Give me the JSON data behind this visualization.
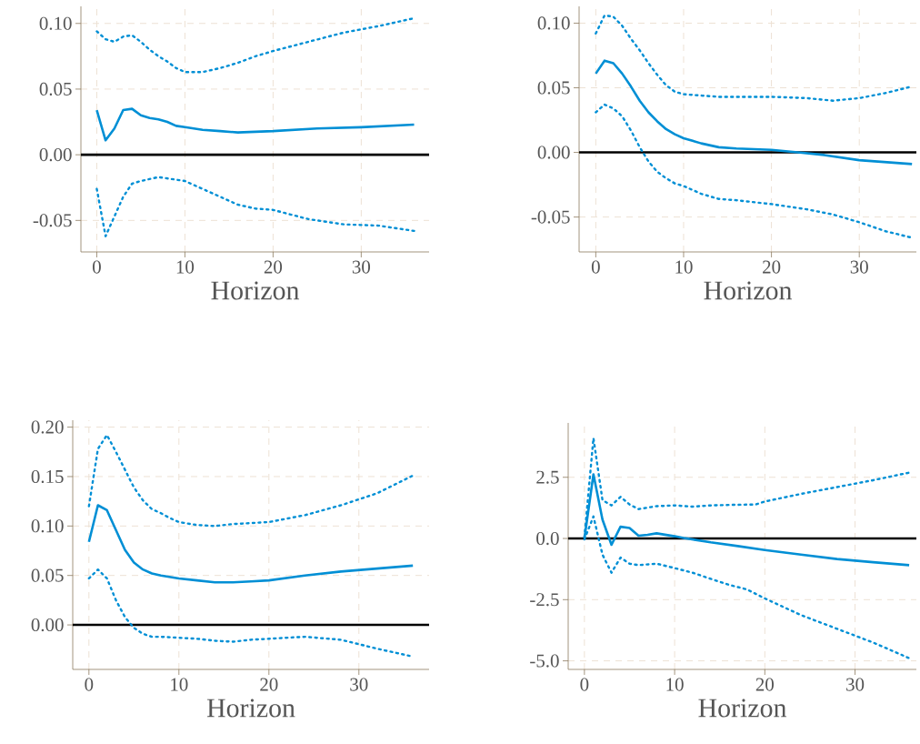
{
  "chart_data": [
    {
      "type": "line",
      "xlabel": "Horizon",
      "grid": true,
      "xlim": [
        -1.8,
        37.7
      ],
      "xticks": [
        0,
        10,
        20,
        30
      ],
      "ylim": [
        -0.074,
        0.113
      ],
      "yticks": [
        {
          "value": -0.05,
          "label": "-0.05"
        },
        {
          "value": 0,
          "label": "0.00"
        },
        {
          "value": 0.05,
          "label": "0.05"
        },
        {
          "value": 0.1,
          "label": "0.10"
        }
      ],
      "ref_lines": [
        {
          "axis": "y",
          "value": 0,
          "color": "#000000"
        }
      ],
      "series": [
        {
          "color": "#008fd5",
          "line_style": "dotted",
          "x": [
            0,
            1,
            2,
            3,
            4,
            5,
            6,
            7,
            8,
            9,
            10,
            12,
            14,
            16,
            18,
            20,
            24,
            28,
            32,
            36
          ],
          "values": [
            0.094,
            0.088,
            0.086,
            0.09,
            0.091,
            0.086,
            0.08,
            0.075,
            0.071,
            0.066,
            0.063,
            0.063,
            0.066,
            0.07,
            0.075,
            0.079,
            0.086,
            0.093,
            0.098,
            0.104
          ]
        },
        {
          "color": "#008fd5",
          "line_style": "solid",
          "x": [
            0,
            1,
            2,
            3,
            4,
            5,
            6,
            7,
            8,
            9,
            10,
            12,
            14,
            16,
            20,
            25,
            30,
            36
          ],
          "values": [
            0.034,
            0.011,
            0.02,
            0.034,
            0.035,
            0.03,
            0.028,
            0.027,
            0.025,
            0.022,
            0.021,
            0.019,
            0.018,
            0.017,
            0.018,
            0.02,
            0.021,
            0.023
          ]
        },
        {
          "color": "#008fd5",
          "line_style": "dotted",
          "x": [
            0,
            1,
            2,
            3,
            4,
            5,
            7,
            9,
            10,
            12,
            14,
            16,
            18,
            20,
            24,
            28,
            32,
            36
          ],
          "values": [
            -0.026,
            -0.062,
            -0.047,
            -0.032,
            -0.022,
            -0.02,
            -0.017,
            -0.019,
            -0.02,
            -0.026,
            -0.032,
            -0.038,
            -0.041,
            -0.042,
            -0.049,
            -0.053,
            -0.054,
            -0.058
          ]
        }
      ]
    },
    {
      "type": "line",
      "xlabel": "Horizon",
      "grid": true,
      "xlim": [
        -1.9,
        36.5
      ],
      "xticks": [
        0,
        10,
        20,
        30
      ],
      "ylim": [
        -0.077,
        0.113
      ],
      "yticks": [
        {
          "value": -0.05,
          "label": "-0.05"
        },
        {
          "value": 0,
          "label": "0.00"
        },
        {
          "value": 0.05,
          "label": "0.05"
        },
        {
          "value": 0.1,
          "label": "0.10"
        }
      ],
      "ref_lines": [
        {
          "axis": "y",
          "value": 0,
          "color": "#000000"
        }
      ],
      "series": [
        {
          "color": "#008fd5",
          "line_style": "dotted",
          "x": [
            0,
            1,
            2,
            3,
            4,
            5,
            6,
            7,
            8,
            9,
            10,
            14,
            20,
            24,
            27,
            30,
            33,
            36
          ],
          "values": [
            0.092,
            0.106,
            0.105,
            0.098,
            0.088,
            0.079,
            0.069,
            0.06,
            0.052,
            0.047,
            0.045,
            0.043,
            0.043,
            0.042,
            0.04,
            0.042,
            0.046,
            0.051
          ]
        },
        {
          "color": "#008fd5",
          "line_style": "solid",
          "x": [
            0,
            1,
            2,
            3,
            4,
            5,
            6,
            7,
            8,
            9,
            10,
            12,
            14,
            16,
            20,
            23,
            26,
            30,
            36
          ],
          "values": [
            0.061,
            0.071,
            0.069,
            0.061,
            0.051,
            0.04,
            0.031,
            0.024,
            0.018,
            0.014,
            0.011,
            0.007,
            0.004,
            0.003,
            0.002,
            0.0,
            -0.002,
            -0.006,
            -0.009
          ]
        },
        {
          "color": "#008fd5",
          "line_style": "dotted",
          "x": [
            0,
            1,
            2,
            3,
            4,
            5,
            6,
            7,
            8,
            9,
            10,
            12,
            14,
            16,
            20,
            24,
            27,
            30,
            33,
            36
          ],
          "values": [
            0.031,
            0.037,
            0.034,
            0.028,
            0.017,
            0.004,
            -0.007,
            -0.015,
            -0.02,
            -0.024,
            -0.026,
            -0.032,
            -0.036,
            -0.037,
            -0.04,
            -0.044,
            -0.048,
            -0.054,
            -0.061,
            -0.066
          ]
        }
      ]
    },
    {
      "type": "line",
      "xlabel": "Horizon",
      "grid": true,
      "xlim": [
        -1.8,
        37.8
      ],
      "xticks": [
        0,
        10,
        20,
        30
      ],
      "ylim": [
        -0.045,
        0.207
      ],
      "yticks": [
        {
          "value": 0,
          "label": "0.00"
        },
        {
          "value": 0.05,
          "label": "0.05"
        },
        {
          "value": 0.1,
          "label": "0.10"
        },
        {
          "value": 0.15,
          "label": "0.15"
        },
        {
          "value": 0.2,
          "label": "0.20"
        }
      ],
      "ref_lines": [
        {
          "axis": "y",
          "value": 0,
          "color": "#000000"
        }
      ],
      "series": [
        {
          "color": "#008fd5",
          "line_style": "dotted",
          "x": [
            0,
            1,
            2,
            3,
            4,
            5,
            6,
            7,
            8,
            9,
            10,
            12,
            14,
            16,
            18,
            20,
            24,
            28,
            32,
            36
          ],
          "values": [
            0.12,
            0.178,
            0.192,
            0.175,
            0.157,
            0.139,
            0.126,
            0.117,
            0.113,
            0.108,
            0.104,
            0.101,
            0.1,
            0.102,
            0.103,
            0.104,
            0.111,
            0.121,
            0.133,
            0.151
          ]
        },
        {
          "color": "#008fd5",
          "line_style": "solid",
          "x": [
            0,
            1,
            2,
            3,
            4,
            5,
            6,
            7,
            8,
            10,
            12,
            14,
            16,
            18,
            20,
            24,
            28,
            32,
            36
          ],
          "values": [
            0.084,
            0.121,
            0.116,
            0.096,
            0.076,
            0.063,
            0.056,
            0.052,
            0.05,
            0.047,
            0.045,
            0.043,
            0.043,
            0.044,
            0.045,
            0.05,
            0.054,
            0.057,
            0.06
          ]
        },
        {
          "color": "#008fd5",
          "line_style": "dotted",
          "x": [
            0,
            1,
            2,
            3,
            4,
            5,
            6,
            7,
            8,
            10,
            12,
            14,
            16,
            18,
            20,
            24,
            28,
            32,
            36
          ],
          "values": [
            0.047,
            0.056,
            0.047,
            0.025,
            0.008,
            -0.003,
            -0.009,
            -0.012,
            -0.012,
            -0.013,
            -0.014,
            -0.016,
            -0.017,
            -0.015,
            -0.014,
            -0.012,
            -0.015,
            -0.024,
            -0.032
          ]
        }
      ]
    },
    {
      "type": "line",
      "xlabel": "Horizon",
      "grid": true,
      "xlim": [
        -1.8,
        36.8
      ],
      "xticks": [
        0,
        10,
        20,
        30
      ],
      "ylim": [
        -5.35,
        4.72
      ],
      "yticks": [
        {
          "value": -5,
          "label": "-5.0"
        },
        {
          "value": -2.5,
          "label": "-2.5"
        },
        {
          "value": 0,
          "label": "0.0"
        },
        {
          "value": 2.5,
          "label": "2.5"
        }
      ],
      "ref_lines": [
        {
          "axis": "y",
          "value": 0,
          "color": "#000000"
        }
      ],
      "series": [
        {
          "color": "#008fd5",
          "line_style": "dotted",
          "x": [
            0,
            1,
            2,
            3,
            4,
            5,
            6,
            8,
            10,
            12,
            14,
            16,
            19,
            20,
            24,
            28,
            32,
            36
          ],
          "values": [
            0.05,
            4.1,
            1.57,
            1.35,
            1.7,
            1.39,
            1.2,
            1.32,
            1.35,
            1.3,
            1.35,
            1.37,
            1.39,
            1.51,
            1.82,
            2.1,
            2.38,
            2.69
          ]
        },
        {
          "color": "#008fd5",
          "line_style": "solid",
          "x": [
            0,
            1,
            2,
            3,
            4,
            5,
            6,
            7,
            8,
            9,
            10,
            11,
            14,
            17,
            20,
            24,
            28,
            32,
            36
          ],
          "values": [
            0.0,
            2.62,
            0.77,
            -0.26,
            0.48,
            0.43,
            0.11,
            0.15,
            0.21,
            0.15,
            0.09,
            0.02,
            -0.16,
            -0.31,
            -0.47,
            -0.66,
            -0.84,
            -0.97,
            -1.09
          ]
        },
        {
          "color": "#008fd5",
          "line_style": "dotted",
          "x": [
            0,
            1,
            2,
            3,
            4,
            5,
            6,
            8,
            10,
            12,
            14,
            16,
            18,
            20,
            24,
            28,
            32,
            36
          ],
          "values": [
            -0.04,
            0.9,
            -0.66,
            -1.4,
            -0.78,
            -1.03,
            -1.09,
            -1.03,
            -1.21,
            -1.4,
            -1.65,
            -1.89,
            -2.08,
            -2.45,
            -3.13,
            -3.69,
            -4.25,
            -4.89
          ]
        }
      ]
    }
  ]
}
